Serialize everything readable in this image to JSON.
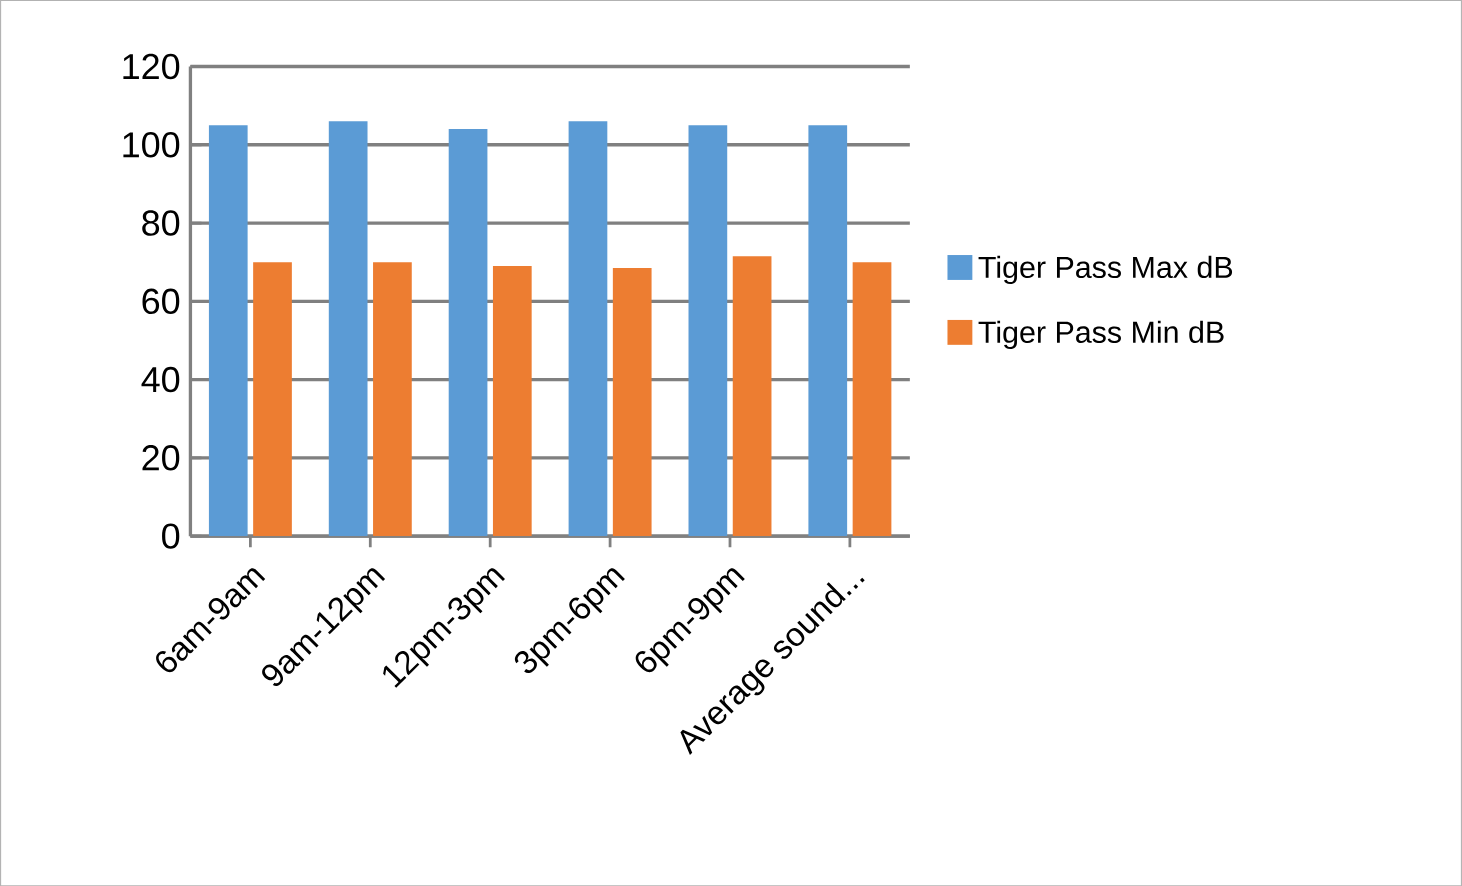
{
  "chart_data": {
    "type": "bar",
    "categories": [
      "6am-9am",
      "9am-12pm",
      "12pm-3pm",
      "3pm-6pm",
      "6pm-9pm",
      "Average sound..."
    ],
    "series": [
      {
        "name": "Tiger Pass Max dB",
        "color": "#5b9bd5",
        "values": [
          105,
          106,
          104,
          106,
          105,
          105
        ]
      },
      {
        "name": "Tiger Pass Min dB",
        "color": "#ed7d31",
        "values": [
          70,
          70,
          69,
          68.5,
          71.5,
          70
        ]
      }
    ],
    "ylim": [
      0,
      120
    ],
    "yticks": [
      0,
      20,
      40,
      60,
      80,
      100,
      120
    ],
    "grid": "y",
    "legend": "right"
  }
}
